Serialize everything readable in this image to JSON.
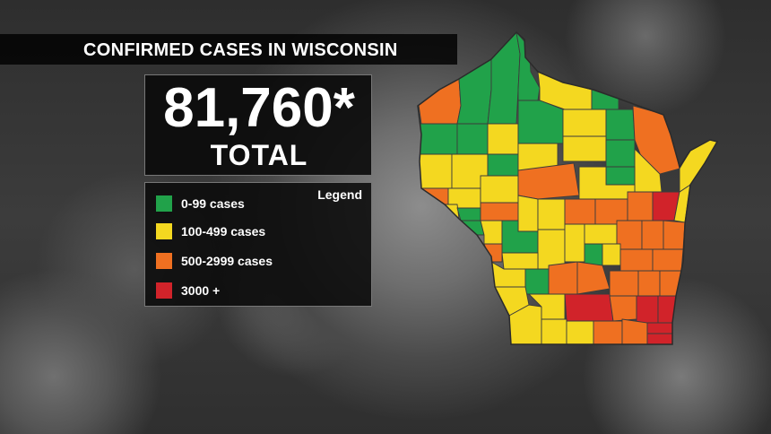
{
  "title": "CONFIRMED CASES IN WISCONSIN",
  "total": {
    "number": "81,760*",
    "label": "TOTAL"
  },
  "legend": {
    "title": "Legend",
    "items": [
      {
        "label": "0-99 cases",
        "color": "#21a24a"
      },
      {
        "label": "100-499 cases",
        "color": "#f4d820"
      },
      {
        "label": "500-2999 cases",
        "color": "#ef7021"
      },
      {
        "label": "3000 +",
        "color": "#d1232a"
      }
    ]
  },
  "map": {
    "region": "Wisconsin",
    "counties": [
      {
        "name": "Douglas",
        "category": "500-2999 cases"
      },
      {
        "name": "Bayfield",
        "category": "0-99 cases"
      },
      {
        "name": "Ashland",
        "category": "0-99 cases"
      },
      {
        "name": "Iron",
        "category": "0-99 cases"
      },
      {
        "name": "Vilas",
        "category": "100-499 cases"
      },
      {
        "name": "Florence",
        "category": "0-99 cases"
      },
      {
        "name": "Burnett",
        "category": "0-99 cases"
      },
      {
        "name": "Washburn",
        "category": "0-99 cases"
      },
      {
        "name": "Sawyer",
        "category": "100-499 cases"
      },
      {
        "name": "Price",
        "category": "0-99 cases"
      },
      {
        "name": "Oneida",
        "category": "100-499 cases"
      },
      {
        "name": "Forest",
        "category": "0-99 cases"
      },
      {
        "name": "Marinette",
        "category": "500-2999 cases"
      },
      {
        "name": "Polk",
        "category": "100-499 cases"
      },
      {
        "name": "Barron",
        "category": "100-499 cases"
      },
      {
        "name": "Rusk",
        "category": "0-99 cases"
      },
      {
        "name": "Taylor",
        "category": "100-499 cases"
      },
      {
        "name": "Lincoln",
        "category": "100-499 cases"
      },
      {
        "name": "Langlade",
        "category": "0-99 cases"
      },
      {
        "name": "Oconto",
        "category": "100-499 cases"
      },
      {
        "name": "Door",
        "category": "100-499 cases"
      },
      {
        "name": "St. Croix",
        "category": "500-2999 cases"
      },
      {
        "name": "Dunn",
        "category": "100-499 cases"
      },
      {
        "name": "Chippewa",
        "category": "100-499 cases"
      },
      {
        "name": "Marathon",
        "category": "500-2999 cases"
      },
      {
        "name": "Menominee",
        "category": "0-99 cases"
      },
      {
        "name": "Shawano",
        "category": "100-499 cases"
      },
      {
        "name": "Pierce",
        "category": "100-499 cases"
      },
      {
        "name": "Pepin",
        "category": "0-99 cases"
      },
      {
        "name": "Eau Claire",
        "category": "500-2999 cases"
      },
      {
        "name": "Clark",
        "category": "100-499 cases"
      },
      {
        "name": "Wood",
        "category": "100-499 cases"
      },
      {
        "name": "Portage",
        "category": "500-2999 cases"
      },
      {
        "name": "Waupaca",
        "category": "500-2999 cases"
      },
      {
        "name": "Outagamie",
        "category": "500-2999 cases"
      },
      {
        "name": "Brown",
        "category": "3000 +"
      },
      {
        "name": "Kewaunee",
        "category": "100-499 cases"
      },
      {
        "name": "Buffalo",
        "category": "0-99 cases"
      },
      {
        "name": "Trempealeau",
        "category": "100-499 cases"
      },
      {
        "name": "Jackson",
        "category": "0-99 cases"
      },
      {
        "name": "Juneau",
        "category": "100-499 cases"
      },
      {
        "name": "Adams",
        "category": "100-499 cases"
      },
      {
        "name": "Waushara",
        "category": "100-499 cases"
      },
      {
        "name": "Winnebago",
        "category": "500-2999 cases"
      },
      {
        "name": "Calumet",
        "category": "500-2999 cases"
      },
      {
        "name": "Manitowoc",
        "category": "500-2999 cases"
      },
      {
        "name": "La Crosse",
        "category": "500-2999 cases"
      },
      {
        "name": "Monroe",
        "category": "100-499 cases"
      },
      {
        "name": "Marquette",
        "category": "0-99 cases"
      },
      {
        "name": "Green Lake",
        "category": "100-499 cases"
      },
      {
        "name": "Fond du Lac",
        "category": "500-2999 cases"
      },
      {
        "name": "Sheboygan",
        "category": "500-2999 cases"
      },
      {
        "name": "Vernon",
        "category": "100-499 cases"
      },
      {
        "name": "Richland",
        "category": "0-99 cases"
      },
      {
        "name": "Sauk",
        "category": "500-2999 cases"
      },
      {
        "name": "Columbia",
        "category": "500-2999 cases"
      },
      {
        "name": "Dodge",
        "category": "500-2999 cases"
      },
      {
        "name": "Washington",
        "category": "500-2999 cases"
      },
      {
        "name": "Ozaukee",
        "category": "500-2999 cases"
      },
      {
        "name": "Crawford",
        "category": "100-499 cases"
      },
      {
        "name": "Grant",
        "category": "100-499 cases"
      },
      {
        "name": "Iowa",
        "category": "100-499 cases"
      },
      {
        "name": "Dane",
        "category": "3000 +"
      },
      {
        "name": "Jefferson",
        "category": "500-2999 cases"
      },
      {
        "name": "Waukesha",
        "category": "3000 +"
      },
      {
        "name": "Milwaukee",
        "category": "3000 +"
      },
      {
        "name": "Lafayette",
        "category": "100-499 cases"
      },
      {
        "name": "Green",
        "category": "100-499 cases"
      },
      {
        "name": "Rock",
        "category": "500-2999 cases"
      },
      {
        "name": "Walworth",
        "category": "500-2999 cases"
      },
      {
        "name": "Racine",
        "category": "3000 +"
      },
      {
        "name": "Kenosha",
        "category": "3000 +"
      }
    ]
  }
}
